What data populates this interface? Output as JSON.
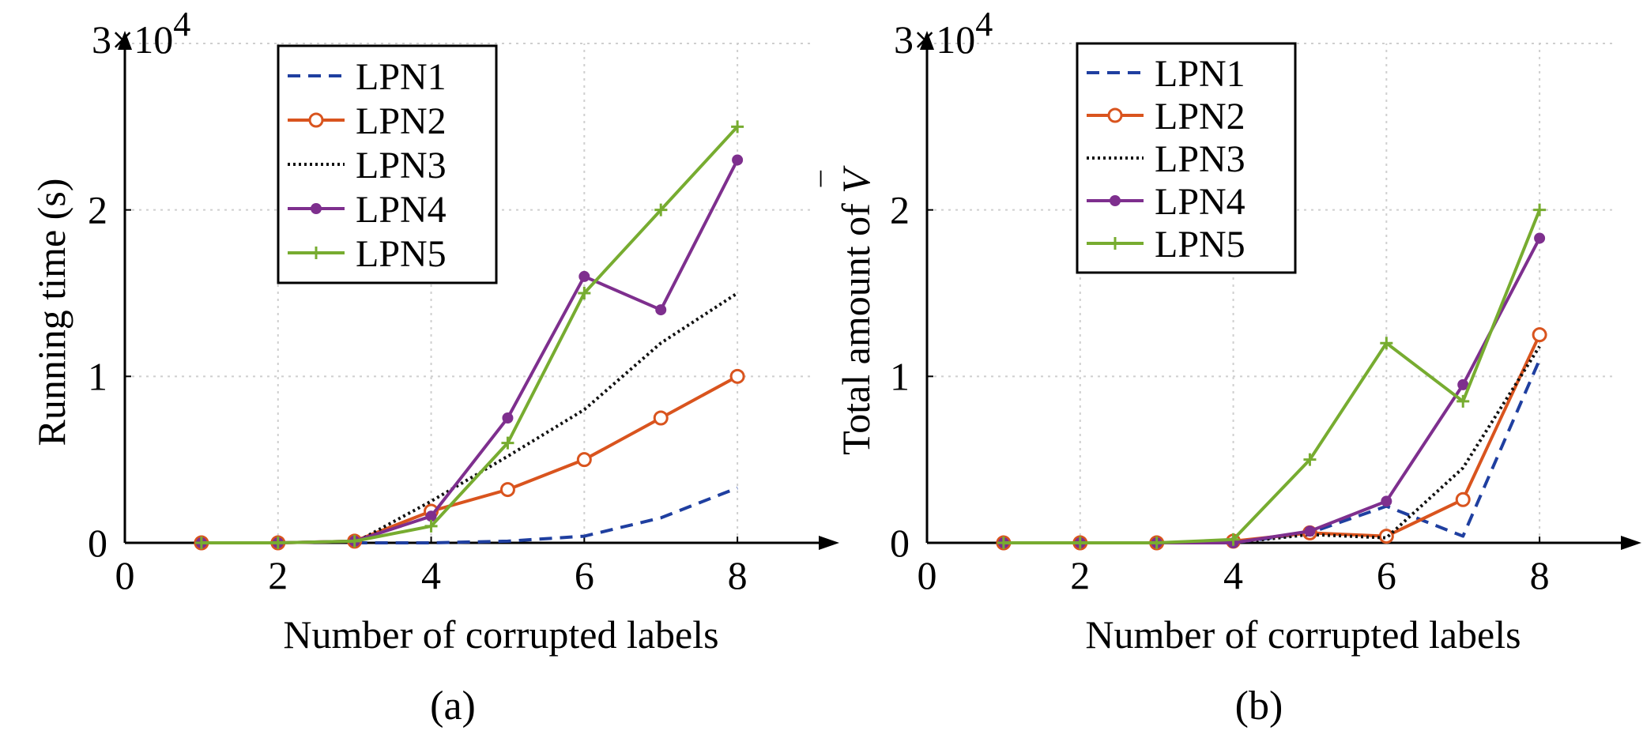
{
  "chart_data": [
    {
      "type": "line",
      "panel_label": "(a)",
      "xlabel": "Number of corrupted labels",
      "ylabel": "Running time (s)",
      "y_multiplier": "3×10",
      "y_multiplier_exp": "4",
      "xlim": [
        0,
        9
      ],
      "ylim": [
        0,
        30000
      ],
      "xticks": [
        0,
        2,
        4,
        6,
        8
      ],
      "yticks": [
        0,
        10000,
        20000
      ],
      "ytick_labels": [
        "0",
        "1",
        "2"
      ],
      "grid": true,
      "legend_position": "top-center",
      "series": [
        {
          "name": "LPN1",
          "style": "dashed",
          "color": "#1f3fa0",
          "marker": "none",
          "x": [
            3,
            4,
            5,
            6,
            7,
            8
          ],
          "y": [
            0,
            0,
            100,
            400,
            1500,
            3300
          ]
        },
        {
          "name": "LPN2",
          "style": "solid",
          "color": "#d9541e",
          "marker": "circle",
          "x": [
            1,
            2,
            3,
            4,
            5,
            6,
            7,
            8
          ],
          "y": [
            0,
            0,
            100,
            1900,
            3200,
            5000,
            7500,
            10000
          ]
        },
        {
          "name": "LPN3",
          "style": "dotted",
          "color": "#111111",
          "marker": "none",
          "x": [
            3,
            4,
            5,
            6,
            7,
            8
          ],
          "y": [
            0,
            2500,
            5200,
            8000,
            12000,
            15000
          ]
        },
        {
          "name": "LPN4",
          "style": "solid",
          "color": "#7e2f8e",
          "marker": "dot",
          "x": [
            1,
            2,
            3,
            4,
            5,
            6,
            7,
            8
          ],
          "y": [
            0,
            0,
            100,
            1600,
            7500,
            16000,
            14000,
            23000
          ]
        },
        {
          "name": "LPN5",
          "style": "solid",
          "color": "#77ac30",
          "marker": "plus",
          "x": [
            1,
            2,
            3,
            4,
            5,
            6,
            7,
            8
          ],
          "y": [
            0,
            0,
            100,
            1000,
            6000,
            15000,
            20000,
            25000
          ]
        }
      ]
    },
    {
      "type": "line",
      "panel_label": "(b)",
      "xlabel": "Number of corrupted labels",
      "ylabel": "Total amount of V̄",
      "ylabel_text": "Total amount of ",
      "ylabel_symbol": "V",
      "y_multiplier": "3×10",
      "y_multiplier_exp": "4",
      "xlim": [
        0,
        9
      ],
      "ylim": [
        0,
        30000
      ],
      "xticks": [
        0,
        2,
        4,
        6,
        8
      ],
      "yticks": [
        0,
        10000,
        20000
      ],
      "ytick_labels": [
        "0",
        "1",
        "2"
      ],
      "grid": true,
      "legend_position": "top-left",
      "series": [
        {
          "name": "LPN1",
          "style": "dashed",
          "color": "#1f3fa0",
          "marker": "none",
          "x": [
            3,
            4,
            5,
            6,
            7,
            8
          ],
          "y": [
            0,
            0,
            600,
            2200,
            400,
            11000
          ]
        },
        {
          "name": "LPN2",
          "style": "solid",
          "color": "#d9541e",
          "marker": "circle",
          "x": [
            1,
            2,
            3,
            4,
            5,
            6,
            7,
            8
          ],
          "y": [
            0,
            0,
            0,
            100,
            600,
            400,
            2600,
            12500
          ]
        },
        {
          "name": "LPN3",
          "style": "dotted",
          "color": "#111111",
          "marker": "none",
          "x": [
            3,
            4,
            5,
            6,
            7,
            8
          ],
          "y": [
            0,
            0,
            500,
            300,
            4500,
            11800
          ]
        },
        {
          "name": "LPN4",
          "style": "solid",
          "color": "#7e2f8e",
          "marker": "dot",
          "x": [
            1,
            2,
            3,
            4,
            5,
            6,
            7,
            8
          ],
          "y": [
            0,
            0,
            0,
            0,
            700,
            2500,
            9500,
            18300
          ]
        },
        {
          "name": "LPN5",
          "style": "solid",
          "color": "#77ac30",
          "marker": "plus",
          "x": [
            1,
            2,
            3,
            4,
            5,
            6,
            7,
            8
          ],
          "y": [
            0,
            0,
            0,
            200,
            5000,
            12000,
            8500,
            20000
          ]
        }
      ]
    }
  ]
}
